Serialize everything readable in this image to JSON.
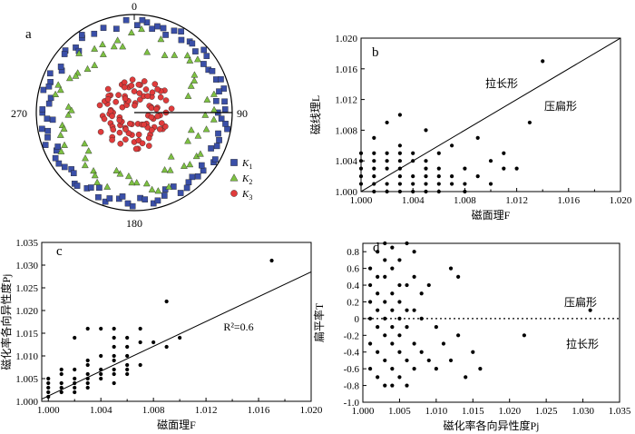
{
  "panel_labels": {
    "a": "a",
    "b": "b",
    "c": "c",
    "d": "d"
  },
  "stereonet": {
    "labels": {
      "north": "0",
      "east": "90",
      "south": "180",
      "west": "270"
    },
    "legend": [
      {
        "key": "K1",
        "sym": "K",
        "sub": "1",
        "marker": "square",
        "color": "#3a4fa8"
      },
      {
        "key": "K2",
        "sym": "K",
        "sub": "2",
        "marker": "triangle",
        "color": "#7dc142"
      },
      {
        "key": "K3",
        "sym": "K",
        "sub": "3",
        "marker": "circle",
        "color": "#e03b3b"
      }
    ],
    "colors": {
      "K1": "#3a4fa8",
      "K2": "#7dc142",
      "K3": "#e03b3b"
    }
  },
  "chart_data": [
    {
      "panel": "a",
      "type": "scatter",
      "subtype": "lower-hemisphere equal-area stereonet",
      "series": [
        {
          "name": "K1",
          "marker": "square",
          "trend": [
            312,
            318,
            325,
            300,
            290,
            284,
            276,
            270,
            265,
            258,
            250,
            244,
            236,
            228,
            220,
            212,
            205,
            198,
            190,
            184,
            176,
            168,
            160,
            152,
            145,
            138,
            130,
            122,
            115,
            108,
            100,
            94,
            88,
            82,
            75,
            68,
            60,
            52,
            45,
            38,
            30,
            22,
            15,
            8,
            2,
            355,
            348,
            340,
            333,
            326,
            318,
            310,
            302,
            295,
            287,
            280,
            272,
            266,
            260,
            254,
            246,
            240,
            232,
            225,
            218,
            210,
            203,
            196,
            188,
            181,
            173,
            165,
            158,
            150,
            142,
            135,
            128,
            120,
            112,
            104,
            97,
            90,
            83,
            76,
            69,
            62,
            55,
            48,
            40,
            33,
            26,
            19,
            12,
            5
          ],
          "plunge": [
            4,
            10,
            6,
            14,
            8,
            3,
            12,
            5,
            16,
            9,
            2,
            11,
            6,
            13,
            4,
            8,
            15,
            3,
            10,
            6,
            12,
            4,
            9,
            14,
            5,
            11,
            7,
            3,
            13,
            8,
            2,
            10,
            6,
            15,
            4,
            9,
            12,
            5,
            11,
            7,
            3,
            14,
            8,
            6,
            10,
            4,
            12,
            7,
            9,
            3,
            15,
            6,
            11,
            4,
            8,
            13,
            5,
            10,
            3,
            7,
            14,
            6,
            9,
            12,
            4,
            11,
            5,
            8,
            13,
            3,
            10,
            6,
            15,
            4,
            9,
            7,
            12,
            3,
            8,
            11,
            5,
            14,
            6,
            10,
            4,
            9,
            13,
            3,
            7,
            11,
            6,
            8,
            12,
            4
          ]
        },
        {
          "name": "K2",
          "marker": "triangle",
          "trend": [
            20,
            35,
            50,
            65,
            80,
            95,
            110,
            125,
            140,
            155,
            170,
            185,
            200,
            215,
            230,
            245,
            260,
            275,
            290,
            305,
            320,
            335,
            350,
            5,
            28,
            43,
            58,
            73,
            88,
            103,
            118,
            133,
            148,
            163,
            178,
            193,
            208,
            223,
            238,
            253,
            268,
            283,
            298,
            313,
            328,
            343,
            358,
            12,
            47,
            62,
            77,
            92,
            107,
            122,
            137,
            152,
            167,
            182,
            197,
            212,
            227,
            242,
            257,
            272,
            287,
            302,
            317,
            332,
            347
          ],
          "plunge": [
            20,
            28,
            15,
            35,
            24,
            18,
            30,
            22,
            40,
            16,
            26,
            34,
            19,
            27,
            38,
            21,
            25,
            32,
            17,
            29,
            36,
            23,
            31,
            14,
            33,
            20,
            27,
            41,
            18,
            24,
            37,
            22,
            30,
            16,
            28,
            35,
            19,
            26,
            39,
            21,
            32,
            17,
            25,
            34,
            23,
            29,
            18,
            36,
            22,
            30,
            16,
            27,
            38,
            20,
            25,
            33,
            19,
            28,
            37,
            24,
            31,
            15,
            26,
            35,
            21,
            29,
            17,
            32,
            24
          ]
        },
        {
          "name": "K3",
          "marker": "circle",
          "trend": [
            0,
            12,
            24,
            36,
            48,
            60,
            72,
            84,
            96,
            108,
            120,
            132,
            144,
            156,
            168,
            180,
            192,
            204,
            216,
            228,
            240,
            252,
            264,
            276,
            288,
            300,
            312,
            324,
            336,
            348,
            6,
            18,
            30,
            42,
            54,
            66,
            78,
            90,
            102,
            114,
            126,
            138,
            150,
            162,
            174,
            186,
            198,
            210,
            222,
            234,
            246,
            258,
            270,
            282,
            294,
            306,
            318,
            330,
            342,
            354,
            3,
            27,
            51,
            75,
            99,
            123,
            147,
            171,
            195,
            219,
            243,
            267,
            291,
            315,
            339,
            15,
            45,
            81,
            111,
            141,
            177,
            207,
            237,
            273,
            303,
            333,
            9,
            39,
            69,
            105,
            135,
            165,
            201,
            231,
            261,
            297,
            327,
            357
          ],
          "plunge": [
            72,
            66,
            78,
            60,
            70,
            64,
            75,
            58,
            68,
            73,
            62,
            76,
            67,
            59,
            71,
            65,
            80,
            61,
            69,
            74,
            57,
            77,
            63,
            70,
            66,
            72,
            60,
            79,
            64,
            68,
            82,
            62,
            74,
            67,
            58,
            76,
            70,
            63,
            78,
            61,
            69,
            73,
            65,
            80,
            59,
            71,
            66,
            75,
            62,
            77,
            68,
            64,
            72,
            60,
            79,
            65,
            70,
            74,
            63,
            67,
            84,
            68,
            61,
            75,
            70,
            64,
            78,
            66,
            72,
            60,
            76,
            69,
            63,
            81,
            67,
            73,
            62,
            71,
            65,
            77,
            59,
            74,
            68,
            70,
            64,
            79,
            66,
            72,
            61,
            75,
            69,
            63,
            80,
            67,
            71,
            65,
            76,
            62
          ]
        }
      ]
    },
    {
      "panel": "b",
      "type": "scatter",
      "xlabel": "磁面理F",
      "ylabel": "磁线理L",
      "xlim": [
        1.0,
        1.02
      ],
      "ylim": [
        1.0,
        1.02
      ],
      "xticks": [
        "1.000",
        "1.004",
        "1.008",
        "1.012",
        "1.016",
        "1.020"
      ],
      "yticks": [
        "1.000",
        "1.004",
        "1.008",
        "1.012",
        "1.016",
        "1.020"
      ],
      "reference_line": {
        "x": [
          1.0,
          1.02
        ],
        "y": [
          1.0,
          1.02
        ]
      },
      "annotations": [
        "拉长形",
        "压扁形"
      ],
      "x": [
        1.0,
        1.0,
        1.0,
        1.0,
        1.0,
        1.001,
        1.001,
        1.001,
        1.001,
        1.001,
        1.001,
        1.001,
        1.002,
        1.002,
        1.002,
        1.002,
        1.002,
        1.002,
        1.003,
        1.003,
        1.003,
        1.003,
        1.003,
        1.003,
        1.003,
        1.003,
        1.004,
        1.004,
        1.004,
        1.004,
        1.004,
        1.005,
        1.005,
        1.005,
        1.005,
        1.005,
        1.005,
        1.006,
        1.006,
        1.006,
        1.006,
        1.006,
        1.007,
        1.007,
        1.007,
        1.008,
        1.008,
        1.008,
        1.009,
        1.009,
        1.01,
        1.01,
        1.011,
        1.011,
        1.012,
        1.013,
        1.014
      ],
      "y": [
        1.001,
        1.002,
        1.003,
        1.004,
        1.005,
        1.0,
        1.001,
        1.002,
        1.003,
        1.004,
        1.005,
        1.007,
        1.0,
        1.001,
        1.003,
        1.004,
        1.005,
        1.009,
        1.0,
        1.001,
        1.002,
        1.003,
        1.004,
        1.005,
        1.006,
        1.01,
        1.0,
        1.001,
        1.002,
        1.004,
        1.005,
        1.0,
        1.001,
        1.002,
        1.003,
        1.004,
        1.008,
        1.0,
        1.001,
        1.002,
        1.003,
        1.005,
        1.001,
        1.002,
        1.006,
        1.0,
        1.001,
        1.003,
        1.002,
        1.007,
        1.001,
        1.004,
        1.003,
        1.005,
        1.003,
        1.009,
        1.017
      ]
    },
    {
      "panel": "c",
      "type": "scatter",
      "xlabel": "磁面理F",
      "ylabel": "磁化率各向异性度Pj",
      "xlim": [
        0.9995,
        1.02
      ],
      "ylim": [
        1.0,
        1.035
      ],
      "xticks": [
        "1.000",
        "1.004",
        "1.008",
        "1.012",
        "1.016",
        "1.020"
      ],
      "yticks": [
        "1.000",
        "1.005",
        "1.010",
        "1.015",
        "1.020",
        "1.025",
        "1.030",
        "1.035"
      ],
      "fit_line": {
        "x": [
          0.9995,
          1.02
        ],
        "y": [
          1.0005,
          1.0285
        ]
      },
      "annotation": "R²=0.6",
      "x": [
        1.0,
        1.0,
        1.0,
        1.0,
        1.0,
        1.001,
        1.001,
        1.001,
        1.001,
        1.001,
        1.002,
        1.002,
        1.002,
        1.002,
        1.002,
        1.002,
        1.003,
        1.003,
        1.003,
        1.003,
        1.003,
        1.003,
        1.003,
        1.004,
        1.004,
        1.004,
        1.004,
        1.004,
        1.005,
        1.005,
        1.005,
        1.005,
        1.005,
        1.005,
        1.005,
        1.005,
        1.006,
        1.006,
        1.006,
        1.006,
        1.006,
        1.006,
        1.007,
        1.007,
        1.007,
        1.008,
        1.009,
        1.009,
        1.01,
        1.017
      ],
      "y": [
        1.001,
        1.002,
        1.003,
        1.004,
        1.005,
        1.002,
        1.003,
        1.004,
        1.006,
        1.007,
        1.002,
        1.003,
        1.004,
        1.005,
        1.007,
        1.014,
        1.003,
        1.004,
        1.005,
        1.006,
        1.008,
        1.009,
        1.016,
        1.005,
        1.006,
        1.007,
        1.01,
        1.016,
        1.004,
        1.006,
        1.007,
        1.009,
        1.01,
        1.012,
        1.014,
        1.016,
        1.006,
        1.007,
        1.008,
        1.01,
        1.012,
        1.014,
        1.008,
        1.013,
        1.016,
        1.013,
        1.012,
        1.022,
        1.014,
        1.031
      ]
    },
    {
      "panel": "d",
      "type": "scatter",
      "xlabel": "磁化率各向异性度Pj",
      "ylabel": "扁平率T",
      "xlim": [
        1.0,
        1.035
      ],
      "ylim": [
        -1.0,
        0.9
      ],
      "xticks": [
        "1.000",
        "1.005",
        "1.010",
        "1.015",
        "1.020",
        "1.025",
        "1.030",
        "1.035"
      ],
      "yticks": [
        "-1.0",
        "-0.8",
        "-0.6",
        "-0.4",
        "-0.2",
        "0",
        "0.2",
        "0.4",
        "0.6",
        "0.8"
      ],
      "reference_line": {
        "y": 0,
        "style": "dotted"
      },
      "annotations": [
        "压扁形",
        "拉长形"
      ],
      "x": [
        1.001,
        1.001,
        1.001,
        1.001,
        1.001,
        1.001,
        1.002,
        1.002,
        1.002,
        1.002,
        1.002,
        1.002,
        1.002,
        1.003,
        1.003,
        1.003,
        1.003,
        1.003,
        1.003,
        1.003,
        1.003,
        1.004,
        1.004,
        1.004,
        1.004,
        1.004,
        1.004,
        1.004,
        1.004,
        1.005,
        1.005,
        1.005,
        1.005,
        1.005,
        1.005,
        1.005,
        1.006,
        1.006,
        1.006,
        1.006,
        1.006,
        1.006,
        1.007,
        1.007,
        1.007,
        1.007,
        1.007,
        1.008,
        1.008,
        1.008,
        1.009,
        1.009,
        1.01,
        1.01,
        1.011,
        1.012,
        1.012,
        1.013,
        1.013,
        1.014,
        1.015,
        1.016,
        1.022,
        1.031
      ],
      "y": [
        -0.6,
        -0.3,
        0.0,
        0.2,
        0.4,
        0.6,
        -0.7,
        -0.4,
        -0.1,
        0.1,
        0.3,
        0.5,
        0.8,
        -0.8,
        -0.5,
        -0.2,
        0.0,
        0.2,
        0.5,
        0.7,
        0.9,
        -0.8,
        -0.6,
        -0.3,
        -0.1,
        0.1,
        0.3,
        0.6,
        0.85,
        -0.7,
        -0.4,
        -0.2,
        0.0,
        0.2,
        0.4,
        0.7,
        -0.8,
        -0.5,
        -0.1,
        0.1,
        0.4,
        0.9,
        -0.6,
        -0.3,
        0.1,
        0.5,
        0.8,
        -0.4,
        0.0,
        0.3,
        -0.5,
        0.4,
        -0.6,
        -0.1,
        -0.3,
        0.6,
        -0.5,
        0.5,
        -0.2,
        -0.7,
        -0.4,
        -0.6,
        -0.2,
        0.1
      ]
    }
  ]
}
